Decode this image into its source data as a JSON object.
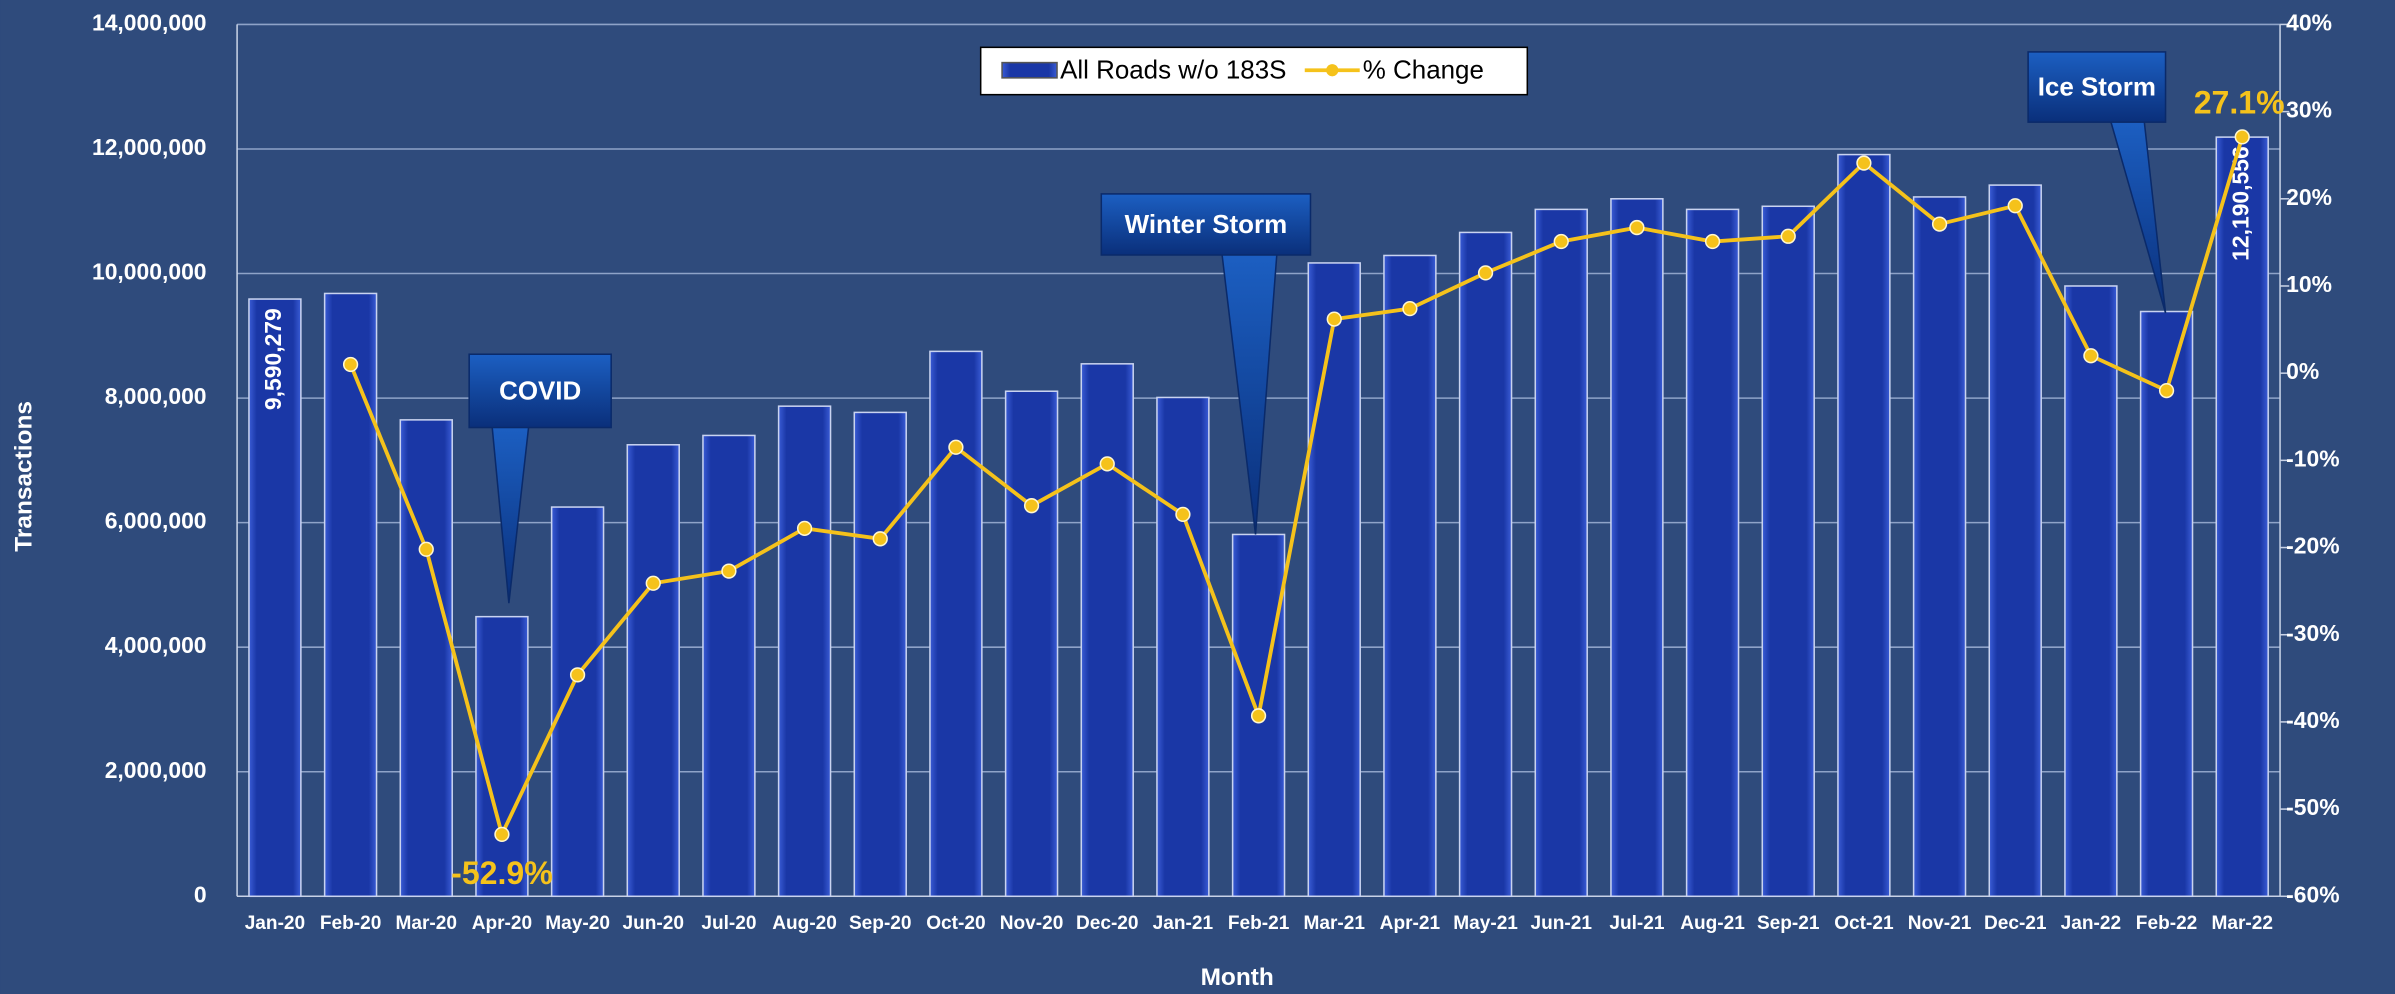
{
  "chart_data": {
    "type": "bar",
    "x_label": "Month",
    "y_label": "Transactions",
    "categories": [
      "Jan-20",
      "Feb-20",
      "Mar-20",
      "Apr-20",
      "May-20",
      "Jun-20",
      "Jul-20",
      "Aug-20",
      "Sep-20",
      "Oct-20",
      "Nov-20",
      "Dec-20",
      "Jan-21",
      "Feb-21",
      "Mar-21",
      "Apr-21",
      "May-21",
      "Jun-21",
      "Jul-21",
      "Aug-21",
      "Sep-21",
      "Oct-21",
      "Nov-21",
      "Dec-21",
      "Jan-22",
      "Feb-22",
      "Mar-22"
    ],
    "series": [
      {
        "name": "All Roads w/o 183S",
        "type": "bar",
        "color": "#1f3fae",
        "values": [
          9590279,
          9680000,
          7650000,
          4490000,
          6250000,
          7250000,
          7400000,
          7870000,
          7770000,
          8750000,
          8110000,
          8550000,
          8010000,
          5810000,
          10170000,
          10290000,
          10660000,
          11030000,
          11200000,
          11030000,
          11080000,
          11910000,
          11230000,
          11420000,
          9800000,
          9390000,
          12190556
        ],
        "value_labels": [
          "9,590,279",
          null,
          null,
          null,
          null,
          null,
          null,
          null,
          null,
          null,
          null,
          null,
          null,
          null,
          null,
          null,
          null,
          null,
          null,
          null,
          null,
          null,
          null,
          null,
          null,
          null,
          "12,190,556"
        ]
      },
      {
        "name": "% Change",
        "type": "line",
        "axis": "y2",
        "color": "#f5c21b",
        "values": [
          null,
          1,
          -20.2,
          -52.9,
          -34.6,
          -24.1,
          -22.7,
          -17.8,
          -19.0,
          -8.5,
          -15.2,
          -10.4,
          -16.2,
          -39.3,
          6.2,
          7.4,
          11.5,
          15.1,
          16.7,
          15.1,
          15.7,
          24.1,
          17.1,
          19.2,
          2.0,
          -2.0,
          27.1
        ],
        "value_labels": [
          null,
          null,
          null,
          "-52.9%",
          null,
          null,
          null,
          null,
          null,
          null,
          null,
          null,
          null,
          null,
          null,
          null,
          null,
          null,
          null,
          null,
          null,
          null,
          null,
          null,
          null,
          null,
          "27.1%"
        ]
      }
    ],
    "ylim": [
      0,
      14000000
    ],
    "yticks": [
      0,
      {
        "value": 2000000,
        "label": "2,000,000"
      },
      {
        "value": 4000000,
        "label": "4,000,000"
      },
      {
        "value": 6000000,
        "label": "6,000,000"
      },
      {
        "value": 8000000,
        "label": "8,000,000"
      },
      {
        "value": 10000000,
        "label": "10,000,000"
      },
      {
        "value": 12000000,
        "label": "12,000,000"
      },
      {
        "value": 14000000,
        "label": "14,000,000"
      }
    ],
    "y2lim": [
      -60,
      40
    ],
    "y2ticks": [
      {
        "value": -60,
        "label": "-60%"
      },
      {
        "value": -50,
        "label": "-50%"
      },
      {
        "value": -40,
        "label": "-40%"
      },
      {
        "value": -30,
        "label": "-30%"
      },
      {
        "value": -20,
        "label": "-20%"
      },
      {
        "value": -10,
        "label": "-10%"
      },
      {
        "value": 0,
        "label": "0%"
      },
      {
        "value": 10,
        "label": "10%"
      },
      {
        "value": 20,
        "label": "20%"
      },
      {
        "value": 30,
        "label": "30%"
      },
      {
        "value": 40,
        "label": "40%"
      }
    ],
    "grid": true,
    "legend": "top",
    "annotations": [
      "COVID",
      "Winter Storm",
      "Ice Storm"
    ]
  }
}
